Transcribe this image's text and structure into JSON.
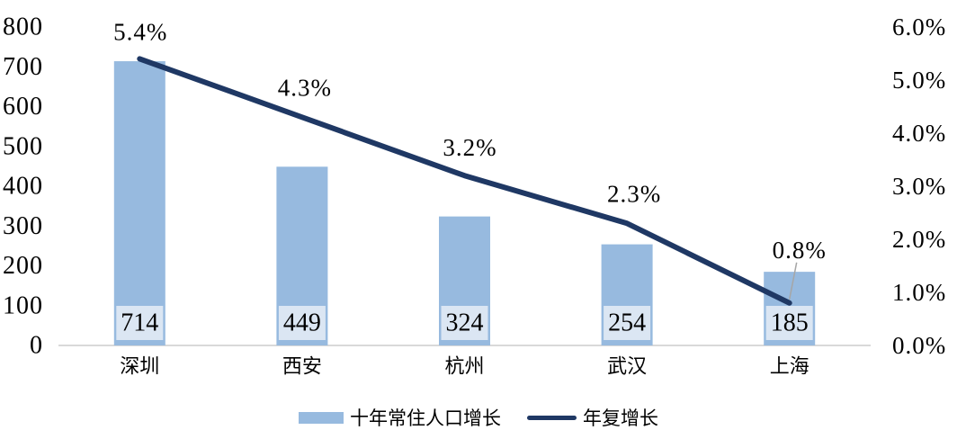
{
  "chart_data": {
    "type": "bar+line",
    "categories": [
      "深圳",
      "西安",
      "杭州",
      "武汉",
      "上海"
    ],
    "series": [
      {
        "name": "十年常住人口增长",
        "type": "bar",
        "axis": "left",
        "values": [
          714,
          449,
          324,
          254,
          185
        ],
        "value_labels": [
          "714",
          "449",
          "324",
          "254",
          "185"
        ]
      },
      {
        "name": "年复增长",
        "type": "line",
        "axis": "right",
        "values": [
          5.4,
          4.3,
          3.2,
          2.3,
          0.8
        ],
        "value_labels": [
          "5.4%",
          "4.3%",
          "3.2%",
          "2.3%",
          "0.8%"
        ]
      }
    ],
    "left_axis": {
      "min": 0,
      "max": 800,
      "tick_labels": [
        "0",
        "100",
        "200",
        "300",
        "400",
        "500",
        "600",
        "700",
        "800"
      ]
    },
    "right_axis": {
      "min": 0,
      "max": 6,
      "tick_labels": [
        "0.0%",
        "1.0%",
        "2.0%",
        "3.0%",
        "4.0%",
        "5.0%",
        "6.0%"
      ]
    },
    "legend": {
      "position": "bottom-center",
      "items": [
        {
          "label": "十年常住人口增长",
          "swatch": "bar"
        },
        {
          "label": "年复增长",
          "swatch": "line"
        }
      ]
    },
    "grid": false,
    "title": ""
  },
  "colors": {
    "bar_fill": "#97badf",
    "bar_value_box": "#dbe6f3",
    "line": "#1f3864",
    "axis_line": "#d9d9d9",
    "leader_line": "#a6a6a6",
    "text": "#000000",
    "background": "#ffffff"
  }
}
